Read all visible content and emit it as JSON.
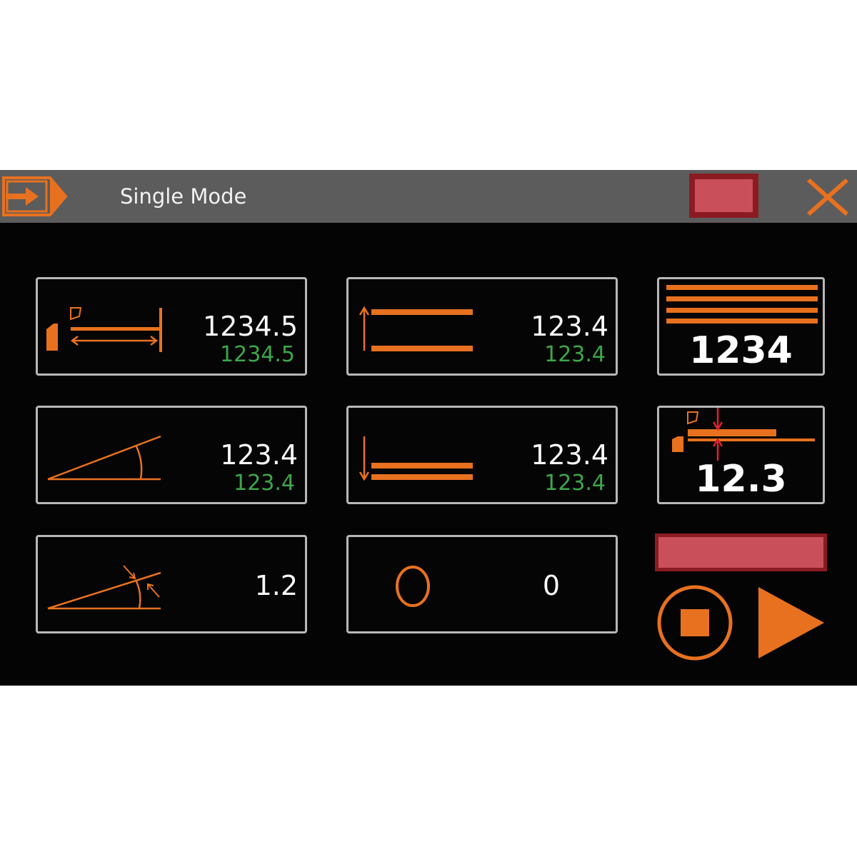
{
  "header": {
    "title": "Single Mode",
    "icons": {
      "enter": "enter-arrow-icon",
      "status": "status-indicator",
      "close": "close-icon"
    }
  },
  "panels": {
    "back_gauge": {
      "icon": "back-gauge-icon",
      "value": "1234.5",
      "actual": "1234.5"
    },
    "opening": {
      "icon": "opening-up-icon",
      "value": "123.4",
      "actual": "123.4"
    },
    "bend_count": {
      "icon": "stacked-sheets-icon",
      "value": "1234"
    },
    "angle": {
      "icon": "bend-angle-icon",
      "value": "123.4",
      "actual": "123.4"
    },
    "closing": {
      "icon": "closing-down-icon",
      "value": "123.4",
      "actual": "123.4"
    },
    "thickness": {
      "icon": "sheet-thickness-icon",
      "value": "12.3"
    },
    "angle_correction": {
      "icon": "angle-correction-icon",
      "value": "1.2"
    },
    "counter": {
      "icon": "circle-icon",
      "value": "0"
    }
  },
  "controls": {
    "stop": "stop-icon",
    "play": "play-icon"
  },
  "colors": {
    "accent": "#e8711f",
    "actual": "#3ea64a",
    "alert_fill": "#c94f5a",
    "alert_border": "#8b1b22",
    "header": "#5c5c5c"
  }
}
